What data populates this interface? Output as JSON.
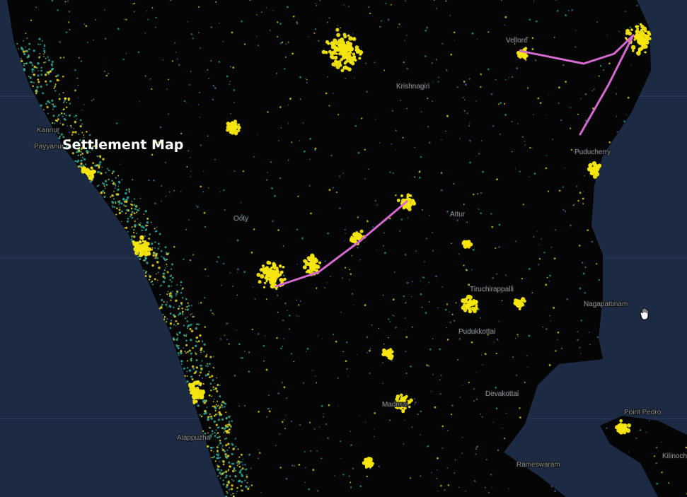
{
  "title": "Settlement Map",
  "places": [
    {
      "name": "Vellore"
    },
    {
      "name": "Krishnagiri"
    },
    {
      "name": "Puducherry"
    },
    {
      "name": "Attur"
    },
    {
      "name": "Ooty"
    },
    {
      "name": "Tiruchirappalli"
    },
    {
      "name": "Nagapattinam"
    },
    {
      "name": "Pudukkottai"
    },
    {
      "name": "Madurai"
    },
    {
      "name": "Devakottai"
    },
    {
      "name": "Rameswaram"
    },
    {
      "name": "Kannur"
    },
    {
      "name": "Payyanur"
    },
    {
      "name": "Alappuzha"
    },
    {
      "name": "Point Pedro"
    },
    {
      "name": "Kilinochchi"
    }
  ]
}
